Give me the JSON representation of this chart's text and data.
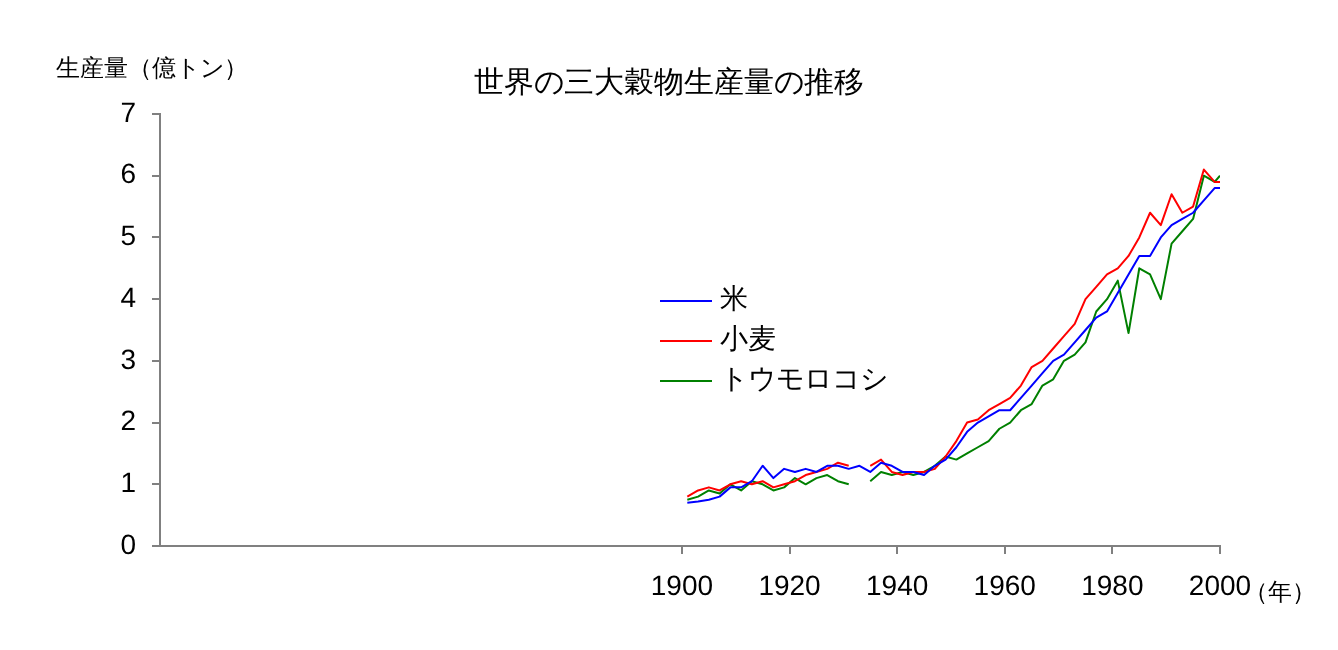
{
  "chart_data": {
    "type": "line",
    "title": "世界の三大穀物生産量の推移",
    "ylabel": "生産量（億トン）",
    "xlabel": "（年）",
    "x": [
      1901,
      1903,
      1905,
      1907,
      1909,
      1911,
      1913,
      1915,
      1917,
      1919,
      1921,
      1923,
      1925,
      1927,
      1929,
      1931,
      1933,
      1935,
      1937,
      1939,
      1941,
      1943,
      1945,
      1947,
      1949,
      1951,
      1953,
      1955,
      1957,
      1959,
      1961,
      1963,
      1965,
      1967,
      1969,
      1971,
      1973,
      1975,
      1977,
      1979,
      1981,
      1983,
      1985,
      1987,
      1989,
      1991,
      1993,
      1995,
      1997,
      1999,
      2000
    ],
    "series": [
      {
        "name": "米",
        "color": "#0000ff",
        "values": [
          0.7,
          0.72,
          0.75,
          0.8,
          0.95,
          0.95,
          1.05,
          1.3,
          1.1,
          1.25,
          1.2,
          1.25,
          1.2,
          1.3,
          1.3,
          1.25,
          1.3,
          1.2,
          1.35,
          1.3,
          1.2,
          1.2,
          1.15,
          1.3,
          1.4,
          1.6,
          1.85,
          2.0,
          2.1,
          2.2,
          2.2,
          2.4,
          2.6,
          2.8,
          3.0,
          3.1,
          3.3,
          3.5,
          3.7,
          3.8,
          4.1,
          4.4,
          4.7,
          4.7,
          5.0,
          5.2,
          5.3,
          5.4,
          5.6,
          5.8,
          5.8
        ]
      },
      {
        "name": "小麦",
        "color": "#ff0000",
        "values": [
          0.8,
          0.9,
          0.95,
          0.9,
          1.0,
          1.05,
          1.0,
          1.05,
          0.95,
          1.0,
          1.05,
          1.15,
          1.2,
          1.25,
          1.35,
          1.3,
          null,
          1.3,
          1.4,
          1.2,
          1.15,
          1.2,
          1.2,
          1.25,
          1.45,
          1.7,
          2.0,
          2.05,
          2.2,
          2.3,
          2.4,
          2.6,
          2.9,
          3.0,
          3.2,
          3.4,
          3.6,
          4.0,
          4.2,
          4.4,
          4.5,
          4.7,
          5.0,
          5.4,
          5.2,
          5.7,
          5.4,
          5.5,
          6.1,
          5.9,
          5.9
        ]
      },
      {
        "name": "トウモロコシ",
        "color": "#008000",
        "values": [
          0.75,
          0.8,
          0.9,
          0.85,
          1.0,
          0.9,
          1.05,
          1.0,
          0.9,
          0.95,
          1.1,
          1.0,
          1.1,
          1.15,
          1.05,
          1.0,
          null,
          1.05,
          1.2,
          1.15,
          1.2,
          1.15,
          1.2,
          1.3,
          1.45,
          1.4,
          1.5,
          1.6,
          1.7,
          1.9,
          2.0,
          2.2,
          2.3,
          2.6,
          2.7,
          3.0,
          3.1,
          3.3,
          3.8,
          4.0,
          4.3,
          3.45,
          4.5,
          4.4,
          4.0,
          4.9,
          5.1,
          5.3,
          6.0,
          5.9,
          6.0
        ]
      }
    ],
    "xlim": [
      1803,
      2000
    ],
    "xticks": [
      1900,
      1920,
      1940,
      1960,
      1980,
      2000
    ],
    "ylim": [
      0,
      7
    ],
    "yticks": [
      0,
      1,
      2,
      3,
      4,
      5,
      6,
      7
    ],
    "grid": false,
    "legend": "center",
    "marker": "none",
    "line_style": "solid"
  }
}
